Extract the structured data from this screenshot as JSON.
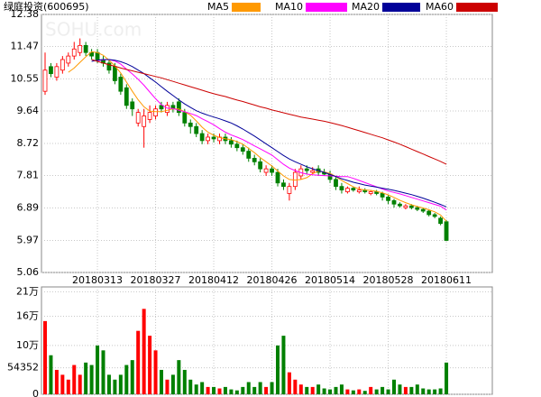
{
  "chart_data": {
    "type": "candlestick",
    "title": "绿庭投资(600695)",
    "watermark": "SOHU.com",
    "categories": [
      null,
      null,
      null,
      null,
      null,
      null,
      null,
      null,
      null,
      "20180313",
      null,
      null,
      null,
      null,
      null,
      null,
      null,
      null,
      null,
      "20180327",
      null,
      null,
      null,
      null,
      null,
      null,
      null,
      null,
      null,
      "20180412",
      null,
      null,
      null,
      null,
      null,
      null,
      null,
      null,
      null,
      "20180426",
      null,
      null,
      null,
      null,
      null,
      null,
      null,
      null,
      null,
      "20180514",
      null,
      null,
      null,
      null,
      null,
      null,
      null,
      null,
      null,
      "20180528",
      null,
      null,
      null,
      null,
      null,
      null,
      null,
      null,
      null,
      "20180611"
    ],
    "open": [
      10.2,
      10.9,
      10.6,
      10.8,
      11.0,
      11.2,
      11.3,
      11.5,
      11.3,
      11.3,
      11.1,
      11.0,
      10.9,
      10.6,
      10.3,
      9.9,
      9.3,
      9.2,
      9.4,
      9.5,
      9.8,
      9.6,
      9.8,
      9.9,
      9.6,
      9.3,
      9.2,
      9.0,
      8.8,
      8.9,
      8.8,
      8.9,
      8.8,
      8.7,
      8.6,
      8.5,
      8.3,
      8.2,
      7.9,
      8.0,
      7.9,
      7.6,
      7.3,
      7.5,
      7.8,
      8.0,
      7.9,
      8.0,
      7.9,
      7.85,
      7.7,
      7.5,
      7.35,
      7.45,
      7.35,
      7.4,
      7.3,
      7.35,
      7.3,
      7.2,
      7.1,
      7.0,
      6.9,
      6.95,
      6.9,
      6.85,
      6.8,
      6.7,
      6.6,
      6.5
    ],
    "high": [
      11.3,
      11.0,
      11.0,
      11.2,
      11.3,
      11.6,
      11.7,
      11.6,
      11.4,
      11.4,
      11.2,
      11.1,
      11.0,
      10.7,
      10.4,
      10.0,
      9.7,
      9.7,
      9.8,
      9.8,
      9.9,
      9.9,
      9.9,
      10.0,
      9.7,
      9.4,
      9.3,
      9.1,
      9.0,
      9.0,
      9.0,
      9.0,
      8.9,
      8.8,
      8.7,
      8.6,
      8.4,
      8.3,
      8.1,
      8.1,
      8.0,
      7.7,
      7.6,
      8.0,
      8.1,
      8.1,
      8.05,
      8.1,
      8.0,
      7.95,
      7.8,
      7.6,
      7.5,
      7.5,
      7.5,
      7.45,
      7.4,
      7.4,
      7.35,
      7.25,
      7.15,
      7.05,
      7.0,
      7.0,
      6.95,
      6.9,
      6.85,
      6.75,
      6.65,
      6.55
    ],
    "low": [
      10.1,
      10.6,
      10.5,
      10.7,
      10.9,
      11.1,
      11.2,
      11.2,
      11.1,
      11.0,
      10.9,
      10.7,
      10.4,
      10.1,
      9.7,
      9.5,
      9.2,
      8.6,
      9.3,
      9.4,
      9.6,
      9.5,
      9.6,
      9.5,
      9.2,
      9.0,
      8.9,
      8.7,
      8.7,
      8.75,
      8.7,
      8.7,
      8.6,
      8.5,
      8.4,
      8.2,
      8.1,
      7.9,
      7.8,
      7.8,
      7.5,
      7.4,
      7.1,
      7.4,
      7.7,
      7.85,
      7.85,
      7.8,
      7.8,
      7.6,
      7.4,
      7.3,
      7.3,
      7.35,
      7.3,
      7.3,
      7.25,
      7.25,
      7.1,
      7.0,
      6.9,
      6.9,
      6.85,
      6.85,
      6.8,
      6.75,
      6.65,
      6.6,
      6.4,
      5.95
    ],
    "close": [
      10.8,
      10.7,
      10.9,
      11.1,
      11.2,
      11.4,
      11.5,
      11.3,
      11.2,
      11.1,
      11.0,
      10.8,
      10.5,
      10.2,
      9.8,
      9.7,
      9.6,
      9.5,
      9.6,
      9.7,
      9.7,
      9.8,
      9.7,
      9.6,
      9.3,
      9.2,
      9.0,
      8.8,
      8.9,
      8.85,
      8.9,
      8.8,
      8.7,
      8.6,
      8.5,
      8.3,
      8.2,
      8.0,
      8.0,
      7.9,
      7.6,
      7.5,
      7.5,
      7.9,
      8.0,
      7.95,
      7.95,
      7.9,
      7.85,
      7.7,
      7.5,
      7.4,
      7.45,
      7.4,
      7.4,
      7.35,
      7.35,
      7.3,
      7.2,
      7.1,
      7.0,
      6.95,
      6.95,
      6.9,
      6.85,
      6.8,
      6.7,
      6.65,
      6.45,
      5.97
    ],
    "up_color": "#ff0000",
    "down_color": "#008000",
    "ylim": [
      5.06,
      12.38
    ],
    "yticks": [
      12.38,
      11.47,
      10.55,
      9.64,
      8.72,
      7.81,
      6.89,
      5.97,
      5.06
    ],
    "grid": true,
    "ma": [
      {
        "name": "MA5",
        "color": "#ff9900",
        "values": [
          null,
          null,
          null,
          null,
          10.74,
          10.86,
          11.02,
          11.18,
          11.32,
          11.3,
          11.22,
          11.08,
          10.92,
          10.72,
          10.46,
          10.2,
          9.96,
          9.76,
          9.64,
          9.62,
          9.62,
          9.66,
          9.7,
          9.7,
          9.62,
          9.52,
          9.36,
          9.18,
          9.04,
          8.95,
          8.89,
          8.85,
          8.83,
          8.77,
          8.7,
          8.58,
          8.46,
          8.32,
          8.2,
          8.08,
          7.94,
          7.8,
          7.7,
          7.68,
          7.7,
          7.75,
          7.86,
          7.94,
          7.91,
          7.87,
          7.78,
          7.67,
          7.58,
          7.49,
          7.43,
          7.4,
          7.39,
          7.36,
          7.32,
          7.26,
          7.19,
          7.11,
          7.04,
          6.98,
          6.93,
          6.89,
          6.84,
          6.78,
          6.69,
          6.51
        ]
      },
      {
        "name": "MA10",
        "color": "#ff00ff",
        "values": [
          null,
          null,
          null,
          null,
          null,
          null,
          null,
          null,
          null,
          11.07,
          11.09,
          11.1,
          11.06,
          10.97,
          10.83,
          10.69,
          10.54,
          10.37,
          10.18,
          9.99,
          9.82,
          9.72,
          9.71,
          9.66,
          9.62,
          9.57,
          9.51,
          9.42,
          9.34,
          9.25,
          9.14,
          9.04,
          8.96,
          8.9,
          8.83,
          8.74,
          8.65,
          8.57,
          8.48,
          8.39,
          8.26,
          8.13,
          8.02,
          7.95,
          7.89,
          7.85,
          7.83,
          7.82,
          7.81,
          7.8,
          7.79,
          7.78,
          7.78,
          7.73,
          7.67,
          7.61,
          7.55,
          7.49,
          7.43,
          7.37,
          7.33,
          7.29,
          7.24,
          7.19,
          7.14,
          7.09,
          7.04,
          6.99,
          6.94,
          6.83
        ]
      },
      {
        "name": "MA20",
        "color": "#000099",
        "values": [
          null,
          null,
          null,
          null,
          null,
          null,
          null,
          null,
          11.05,
          11.08,
          11.1,
          11.1,
          11.08,
          11.04,
          10.98,
          10.9,
          10.8,
          10.7,
          10.58,
          10.46,
          10.33,
          10.2,
          10.08,
          9.96,
          9.84,
          9.74,
          9.65,
          9.58,
          9.52,
          9.47,
          9.42,
          9.36,
          9.3,
          9.22,
          9.13,
          9.03,
          8.93,
          8.82,
          8.71,
          8.6,
          8.49,
          8.38,
          8.28,
          8.2,
          8.13,
          8.06,
          8.0,
          7.95,
          7.9,
          7.84,
          7.78,
          7.72,
          7.67,
          7.62,
          7.58,
          7.54,
          7.51,
          7.48,
          7.45,
          7.42,
          7.39,
          7.35,
          7.31,
          7.27,
          7.22,
          7.17,
          7.11,
          7.05,
          6.99,
          6.92
        ]
      },
      {
        "name": "MA60",
        "color": "#cc0000",
        "values": [
          null,
          null,
          null,
          null,
          null,
          null,
          null,
          null,
          11.1,
          11.05,
          11.0,
          10.95,
          10.91,
          10.86,
          10.82,
          10.78,
          10.74,
          10.7,
          10.66,
          10.62,
          10.58,
          10.53,
          10.48,
          10.43,
          10.38,
          10.33,
          10.28,
          10.23,
          10.18,
          10.13,
          10.09,
          10.05,
          10.0,
          9.95,
          9.91,
          9.86,
          9.81,
          9.76,
          9.72,
          9.67,
          9.63,
          9.59,
          9.55,
          9.51,
          9.47,
          9.44,
          9.41,
          9.38,
          9.35,
          9.31,
          9.27,
          9.23,
          9.18,
          9.13,
          9.08,
          9.03,
          8.98,
          8.93,
          8.88,
          8.82,
          8.76,
          8.7,
          8.63,
          8.56,
          8.49,
          8.42,
          8.35,
          8.28,
          8.21,
          8.13
        ]
      }
    ],
    "volume": {
      "values": [
        150000,
        80000,
        50000,
        40000,
        30000,
        60000,
        40000,
        65000,
        60000,
        100000,
        90000,
        40000,
        30000,
        40000,
        60000,
        70000,
        130000,
        175000,
        120000,
        90000,
        50000,
        30000,
        40000,
        70000,
        50000,
        30000,
        20000,
        25000,
        15000,
        15000,
        12000,
        15000,
        10000,
        8000,
        15000,
        25000,
        15000,
        25000,
        15000,
        25000,
        100000,
        120000,
        45000,
        30000,
        20000,
        15000,
        15000,
        20000,
        12000,
        10000,
        15000,
        20000,
        10000,
        8000,
        10000,
        7000,
        15000,
        10000,
        15000,
        10000,
        30000,
        20000,
        15000,
        15000,
        20000,
        12000,
        10000,
        10000,
        12000,
        65000
      ],
      "ylim": [
        0,
        220000
      ],
      "yticks": [
        0,
        54352,
        {
          "value": 100000,
          "label": "10万"
        },
        {
          "value": 160000,
          "label": "16万"
        },
        {
          "value": 210000,
          "label": "21万"
        }
      ]
    }
  }
}
